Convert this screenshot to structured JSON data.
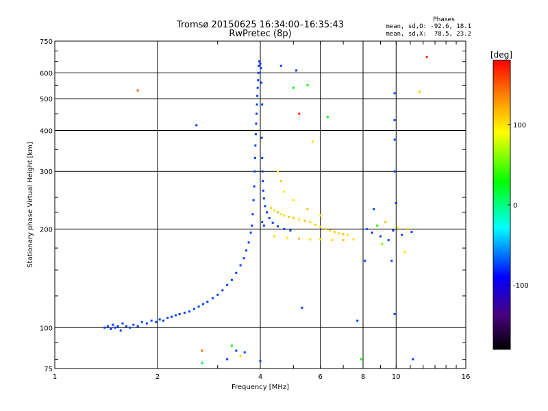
{
  "chart_data": {
    "type": "scatter",
    "title": "Tromsø 20150625 16:34:00–16:35:43",
    "subtitle": "RwPretec (8p)",
    "xlabel": "Frequency [MHz]",
    "ylabel": "Stationary phase Virtual Height [km]",
    "x_scale": "log2",
    "y_scale": "log",
    "xlim": [
      1,
      16
    ],
    "ylim": [
      75,
      750
    ],
    "x_ticks": [
      {
        "value": 1,
        "label": "1"
      },
      {
        "value": 2,
        "label": "2"
      },
      {
        "value": 4,
        "label": "4"
      },
      {
        "value": 6,
        "label": "6"
      },
      {
        "value": 8,
        "label": "8"
      },
      {
        "value": 10,
        "label": "10"
      },
      {
        "value": 16,
        "label": "16"
      }
    ],
    "y_ticks": [
      {
        "value": 75,
        "label": "75"
      },
      {
        "value": 100,
        "label": "100"
      },
      {
        "value": 200,
        "label": "200"
      },
      {
        "value": 300,
        "label": "300"
      },
      {
        "value": 400,
        "label": "400"
      },
      {
        "value": 500,
        "label": "500"
      },
      {
        "value": 600,
        "label": "600"
      },
      {
        "value": 750,
        "label": "750"
      }
    ],
    "grid": true,
    "info": {
      "heading": "Phases",
      "line1": "mean, sd,O: -92.6, 18.1",
      "line2": "mean, sd,X:  78.5, 23.2"
    },
    "colorbar": {
      "label": "[deg]",
      "range": [
        -180,
        180
      ],
      "ticks": [
        {
          "value": 100,
          "label": "100"
        },
        {
          "value": 0,
          "label": "0"
        },
        {
          "value": -100,
          "label": "-100"
        }
      ]
    },
    "series": [
      {
        "points": [
          [
            1.4,
            100,
            -100
          ],
          [
            1.43,
            101,
            -98
          ],
          [
            1.46,
            99,
            -102
          ],
          [
            1.48,
            102,
            -100
          ],
          [
            1.5,
            100,
            -96
          ],
          [
            1.53,
            101,
            -104
          ],
          [
            1.56,
            98,
            -100
          ],
          [
            1.58,
            103,
            -99
          ],
          [
            1.62,
            101,
            -101
          ],
          [
            1.66,
            100,
            -97
          ],
          [
            1.7,
            102,
            -100
          ],
          [
            1.75,
            101,
            -103
          ],
          [
            1.8,
            104,
            -99
          ],
          [
            1.86,
            103,
            -100
          ],
          [
            1.92,
            105,
            -98
          ],
          [
            1.98,
            104,
            -101
          ],
          [
            2.03,
            106,
            -100
          ],
          [
            2.08,
            105,
            -102
          ],
          [
            2.14,
            107,
            -99
          ],
          [
            2.2,
            108,
            -100
          ],
          [
            2.26,
            109,
            -98
          ],
          [
            2.32,
            110,
            -101
          ],
          [
            2.4,
            111,
            -100
          ],
          [
            2.48,
            112,
            -99
          ],
          [
            2.56,
            114,
            -100
          ],
          [
            2.64,
            116,
            -102
          ],
          [
            2.72,
            118,
            -99
          ],
          [
            2.8,
            120,
            -100
          ],
          [
            2.9,
            123,
            -98
          ],
          [
            3.0,
            126,
            -100
          ],
          [
            3.1,
            130,
            -101
          ],
          [
            3.2,
            135,
            -100
          ],
          [
            3.3,
            140,
            -99
          ],
          [
            3.4,
            147,
            -102
          ],
          [
            3.5,
            155,
            -100
          ],
          [
            3.58,
            163,
            -98
          ],
          [
            3.64,
            172,
            -100
          ],
          [
            3.7,
            182,
            -99
          ],
          [
            3.75,
            195,
            -101
          ],
          [
            3.78,
            205,
            -100
          ],
          [
            3.8,
            222,
            -102
          ],
          [
            3.82,
            245,
            -99
          ],
          [
            3.84,
            270,
            -100
          ],
          [
            3.85,
            300,
            -98
          ],
          [
            3.86,
            330,
            -101
          ],
          [
            3.87,
            360,
            -100
          ],
          [
            3.88,
            390,
            -99
          ],
          [
            3.89,
            420,
            -102
          ],
          [
            3.9,
            450,
            -100
          ],
          [
            3.91,
            480,
            -98
          ],
          [
            3.92,
            510,
            -100
          ],
          [
            3.93,
            540,
            -101
          ],
          [
            3.94,
            570,
            -100
          ],
          [
            3.95,
            600,
            -99
          ],
          [
            3.96,
            630,
            -102
          ],
          [
            3.97,
            650,
            -100
          ],
          [
            4.0,
            640,
            -100
          ],
          [
            4.02,
            620,
            -99
          ],
          [
            4.03,
            560,
            -101
          ],
          [
            4.05,
            480,
            -100
          ],
          [
            4.04,
            380,
            -98
          ],
          [
            4.05,
            330,
            -100
          ],
          [
            4.06,
            300,
            -102
          ],
          [
            4.07,
            280,
            -100
          ],
          [
            4.08,
            262,
            -99
          ],
          [
            4.1,
            248,
            -100
          ],
          [
            4.13,
            235,
            -101
          ],
          [
            4.18,
            225,
            -100
          ],
          [
            4.25,
            216,
            -98
          ],
          [
            4.35,
            209,
            -100
          ],
          [
            4.5,
            204,
            -99
          ],
          [
            4.7,
            200,
            -101
          ],
          [
            4.9,
            198,
            -100
          ],
          [
            4.05,
            210,
            -100
          ],
          [
            4.1,
            205,
            -102
          ]
        ]
      },
      {
        "points": [
          [
            4.3,
            232,
            115
          ],
          [
            4.4,
            228,
            110
          ],
          [
            4.5,
            225,
            120
          ],
          [
            4.6,
            222,
            108
          ],
          [
            4.7,
            220,
            112
          ],
          [
            4.85,
            218,
            118
          ],
          [
            5.0,
            216,
            115
          ],
          [
            5.2,
            214,
            110
          ],
          [
            5.4,
            212,
            120
          ],
          [
            5.6,
            210,
            113
          ],
          [
            5.8,
            206,
            117
          ],
          [
            6.0,
            203,
            112
          ],
          [
            6.2,
            200,
            118
          ],
          [
            6.4,
            198,
            109
          ],
          [
            6.6,
            196,
            115
          ],
          [
            6.8,
            194,
            112
          ],
          [
            7.0,
            193,
            120
          ],
          [
            7.2,
            192,
            110
          ],
          [
            4.5,
            300,
            100
          ],
          [
            4.6,
            280,
            115
          ],
          [
            4.7,
            260,
            108
          ],
          [
            5.0,
            245,
            112
          ],
          [
            5.5,
            230,
            118
          ],
          [
            6.0,
            220,
            110
          ],
          [
            4.4,
            190,
            115
          ],
          [
            4.8,
            188,
            108
          ],
          [
            5.2,
            187,
            120
          ],
          [
            5.6,
            186,
            112
          ],
          [
            6.0,
            186,
            115
          ],
          [
            6.5,
            185,
            110
          ],
          [
            7.0,
            185,
            118
          ],
          [
            7.5,
            186,
            112
          ]
        ]
      },
      {
        "points": [
          [
            8.2,
            200,
            -90
          ],
          [
            8.5,
            195,
            -110
          ],
          [
            8.8,
            205,
            30
          ],
          [
            9.0,
            190,
            -100
          ],
          [
            9.3,
            210,
            120
          ],
          [
            9.5,
            185,
            -95
          ],
          [
            9.8,
            198,
            -105
          ],
          [
            10.1,
            202,
            100
          ],
          [
            10.4,
            192,
            -100
          ],
          [
            10.8,
            200,
            115
          ],
          [
            11.1,
            196,
            -98
          ],
          [
            8.6,
            230,
            -100
          ],
          [
            9.1,
            180,
            60
          ],
          [
            10.0,
            240,
            -100
          ],
          [
            10.6,
            170,
            110
          ],
          [
            8.1,
            160,
            -100
          ],
          [
            9.7,
            160,
            -100
          ]
        ]
      },
      {
        "points": [
          [
            1.75,
            530,
            150
          ],
          [
            2.6,
            415,
            -100
          ],
          [
            2.7,
            85,
            150
          ],
          [
            2.7,
            78,
            10
          ],
          [
            3.2,
            80,
            -100
          ],
          [
            3.3,
            88,
            20
          ],
          [
            3.4,
            85,
            -100
          ],
          [
            3.5,
            82,
            110
          ],
          [
            3.6,
            84,
            -100
          ],
          [
            4.0,
            79,
            -100
          ],
          [
            4.6,
            630,
            -100
          ],
          [
            5.1,
            610,
            -100
          ],
          [
            5.2,
            450,
            170
          ],
          [
            5.3,
            115,
            -100
          ],
          [
            5.0,
            540,
            20
          ],
          [
            5.5,
            550,
            20
          ],
          [
            5.7,
            370,
            110
          ],
          [
            6.3,
            440,
            20
          ],
          [
            7.7,
            105,
            -100
          ],
          [
            7.9,
            80,
            20
          ],
          [
            9.9,
            520,
            -100
          ],
          [
            9.9,
            430,
            -100
          ],
          [
            9.9,
            375,
            -100
          ],
          [
            9.9,
            300,
            -100
          ],
          [
            9.9,
            110,
            -100
          ],
          [
            11.2,
            80,
            -100
          ],
          [
            11.7,
            525,
            120
          ],
          [
            12.3,
            670,
            170
          ]
        ]
      }
    ]
  }
}
